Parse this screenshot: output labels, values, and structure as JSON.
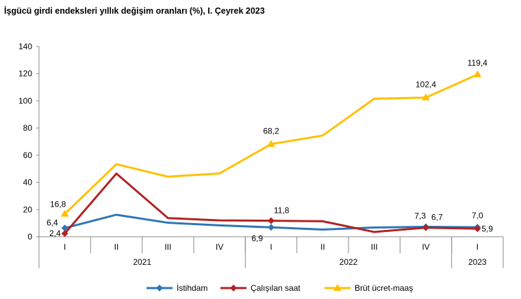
{
  "title": "İşgücü girdi endeksleri yıllık değişim oranları (%), I. Çeyrek 2023",
  "chart_data": {
    "type": "line",
    "title": "İşgücü girdi endeksleri yıllık değişim oranları (%), I. Çeyrek 2023",
    "xlabel": "",
    "ylabel": "",
    "ylim": [
      0,
      140
    ],
    "yticks": [
      0,
      20,
      40,
      60,
      80,
      100,
      120,
      140
    ],
    "grid": false,
    "legend_position": "bottom",
    "categories": [
      "I",
      "II",
      "III",
      "IV",
      "I",
      "II",
      "III",
      "IV",
      "I"
    ],
    "year_groups": [
      {
        "label": "2021",
        "span": 4
      },
      {
        "label": "2022",
        "span": 4
      },
      {
        "label": "2023",
        "span": 1
      }
    ],
    "series": [
      {
        "name": "İstihdam",
        "color": "#2E75B6",
        "marker": "diamond",
        "values": [
          6.4,
          16.2,
          10.3,
          8.4,
          6.9,
          5.3,
          6.8,
          7.3,
          7.0
        ],
        "labels": {
          "0": "6,4",
          "4": "6,9",
          "7": "7,3",
          "8": "7,0"
        }
      },
      {
        "name": "Çalışılan saat",
        "color": "#B22222",
        "marker": "diamond",
        "values": [
          2.4,
          46.5,
          13.7,
          12.0,
          11.8,
          11.4,
          3.5,
          6.7,
          5.9
        ],
        "labels": {
          "0": "2,4",
          "4": "11,8",
          "7": "6,7",
          "8": "5,9"
        }
      },
      {
        "name": "Brüt ücret-maaş",
        "color": "#FFC000",
        "marker": "triangle",
        "values": [
          16.8,
          53.4,
          44.2,
          46.6,
          68.2,
          74.5,
          101.6,
          102.4,
          119.4
        ],
        "labels": {
          "0": "16,8",
          "4": "68,2",
          "7": "102,4",
          "8": "119,4"
        }
      }
    ]
  }
}
